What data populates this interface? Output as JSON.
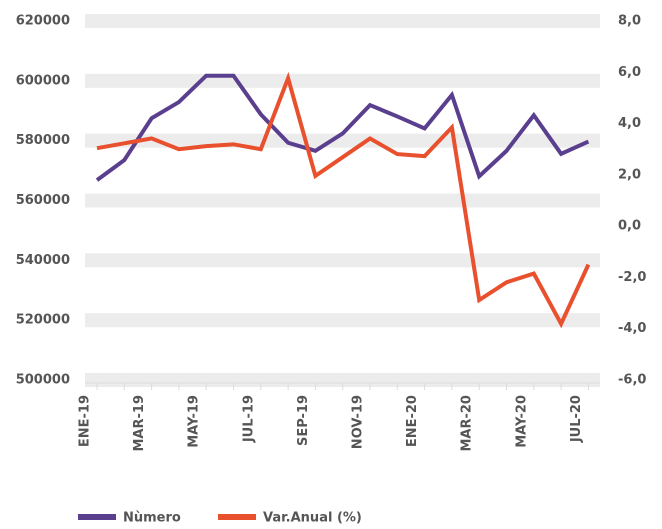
{
  "chart_data": {
    "type": "line",
    "categories": [
      "ENE-19",
      null,
      "MAR-19",
      null,
      "MAY-19",
      null,
      "JUL-19",
      null,
      "SEP-19",
      null,
      "NOV-19",
      null,
      "ENE-20",
      null,
      "MAR-20",
      null,
      "MAY-20",
      null,
      "JUL-20"
    ],
    "series": [
      {
        "name": "Nùmero",
        "color": "#5b3f8f",
        "values": [
          566800,
          573500,
          587500,
          592900,
          601700,
          601700,
          588800,
          579300,
          576600,
          582400,
          591900,
          588100,
          584100,
          595300,
          568100,
          576600,
          588500,
          575600,
          579700
        ]
      },
      {
        "name": "Var.Anual (%)",
        "color": "#e8502e",
        "axis": "y2",
        "values": [
          3.04,
          3.23,
          3.42,
          3.0,
          3.12,
          3.19,
          3.0,
          5.77,
          1.96,
          2.69,
          3.42,
          2.81,
          2.73,
          3.85,
          -2.88,
          -2.19,
          -1.85,
          -3.81,
          -1.5
        ]
      }
    ],
    "ylim": [
      500000,
      620000
    ],
    "yticks": [
      500000,
      520000,
      540000,
      560000,
      580000,
      600000,
      620000
    ],
    "y2lim": [
      -6,
      8
    ],
    "y2ticks": [
      {
        "value": -6,
        "label": "-6,0"
      },
      {
        "value": -4,
        "label": "-4,0"
      },
      {
        "value": -2,
        "label": "-2,0"
      },
      {
        "value": 0,
        "label": "0,0"
      },
      {
        "value": 2,
        "label": "2,0"
      },
      {
        "value": 4,
        "label": "4,0"
      },
      {
        "value": 6,
        "label": "6,0"
      },
      {
        "value": 8,
        "label": "8,0"
      }
    ],
    "grid": true
  }
}
